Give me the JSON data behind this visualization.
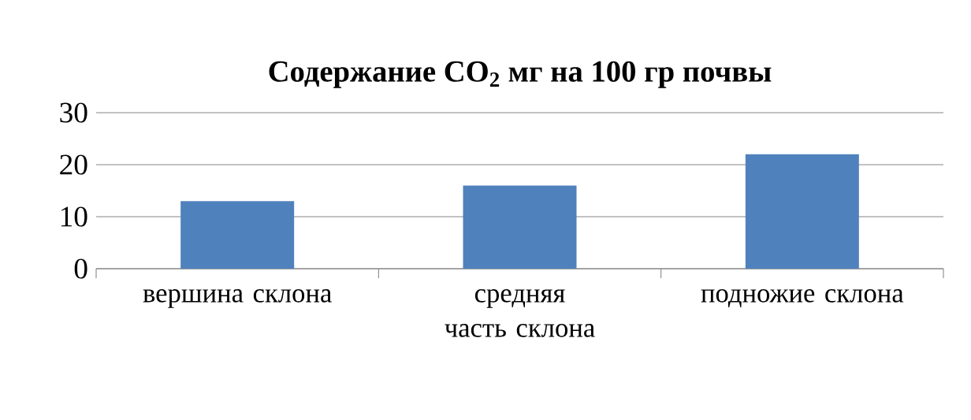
{
  "chart_data": {
    "type": "bar",
    "title": "Содержание CO$_{2}$  мг на 100 гр почвы",
    "categories": [
      "вершина склона",
      "средняя часть склона",
      "подножие склона"
    ],
    "values": [
      13,
      16,
      22
    ],
    "color": "#4f81bd",
    "ylim": [
      0,
      30
    ],
    "yticks": [
      0,
      10,
      20,
      30
    ],
    "grid": "y"
  }
}
